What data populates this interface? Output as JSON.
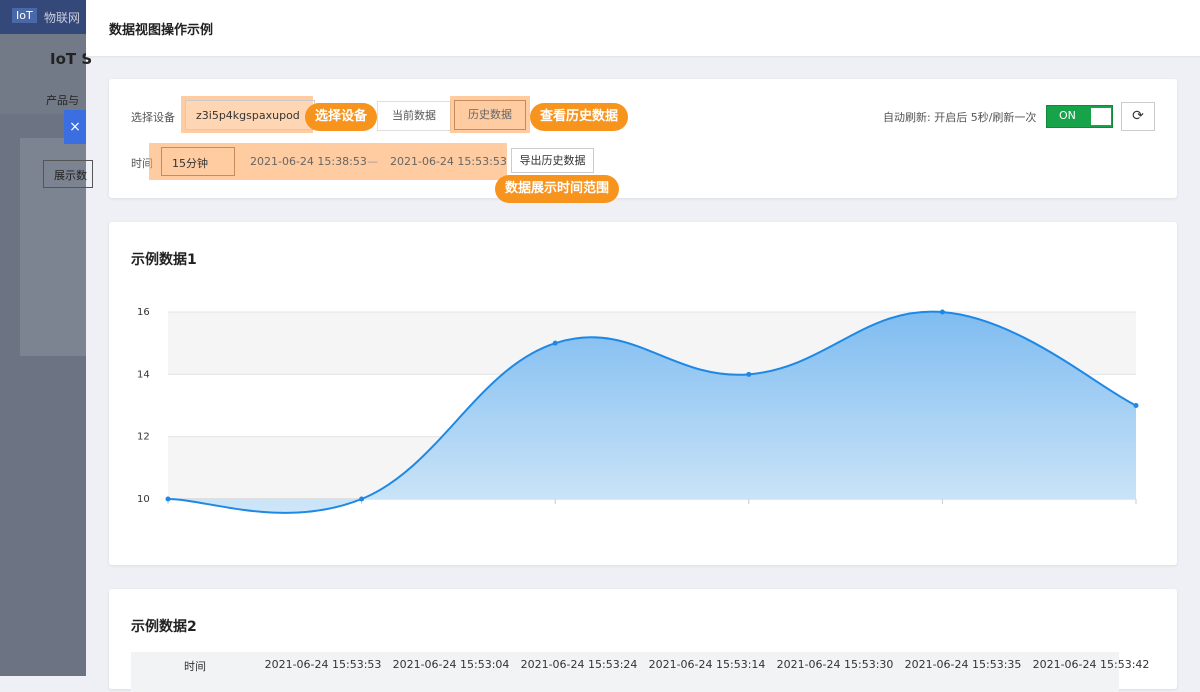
{
  "background": {
    "brand": "IoT",
    "nav": "物联网",
    "app_title": "IoT S",
    "tab": "产品与",
    "button": "展示数"
  },
  "drawer": {
    "title": "数据视图操作示例",
    "close": "×"
  },
  "toolbar": {
    "device_label": "选择设备",
    "device": "z3i5p4kgspaxupod",
    "tabs": [
      "当前数据",
      "历史数据"
    ],
    "callouts": [
      "选择设备",
      "查看历史数据",
      "数据展示时间范围"
    ],
    "auto_refresh": "自动刷新: 开启后 5秒/刷新一次",
    "toggle": "ON",
    "time_label": "时间",
    "range": "15分钟",
    "start": "2021-06-24 15:38:53",
    "separator": "—",
    "end": "2021-06-24 15:53:53",
    "export": "导出历史数据"
  },
  "chart_data": {
    "type": "area",
    "title": "示例数据1",
    "categories": [
      null,
      null,
      null,
      null,
      null,
      null
    ],
    "values": [
      10,
      10,
      15,
      14,
      16,
      13
    ],
    "color": "#1e88e5",
    "ylim": [
      10,
      16
    ],
    "yticks": [
      10,
      12,
      14,
      16
    ],
    "grid": true
  },
  "table": {
    "title": "示例数据2",
    "header": [
      "时间",
      "2021-06-24 15:53:53",
      "2021-06-24 15:53:04",
      "2021-06-24 15:53:24",
      "2021-06-24 15:53:14",
      "2021-06-24 15:53:30",
      "2021-06-24 15:53:35",
      "2021-06-24 15:53:42"
    ]
  }
}
